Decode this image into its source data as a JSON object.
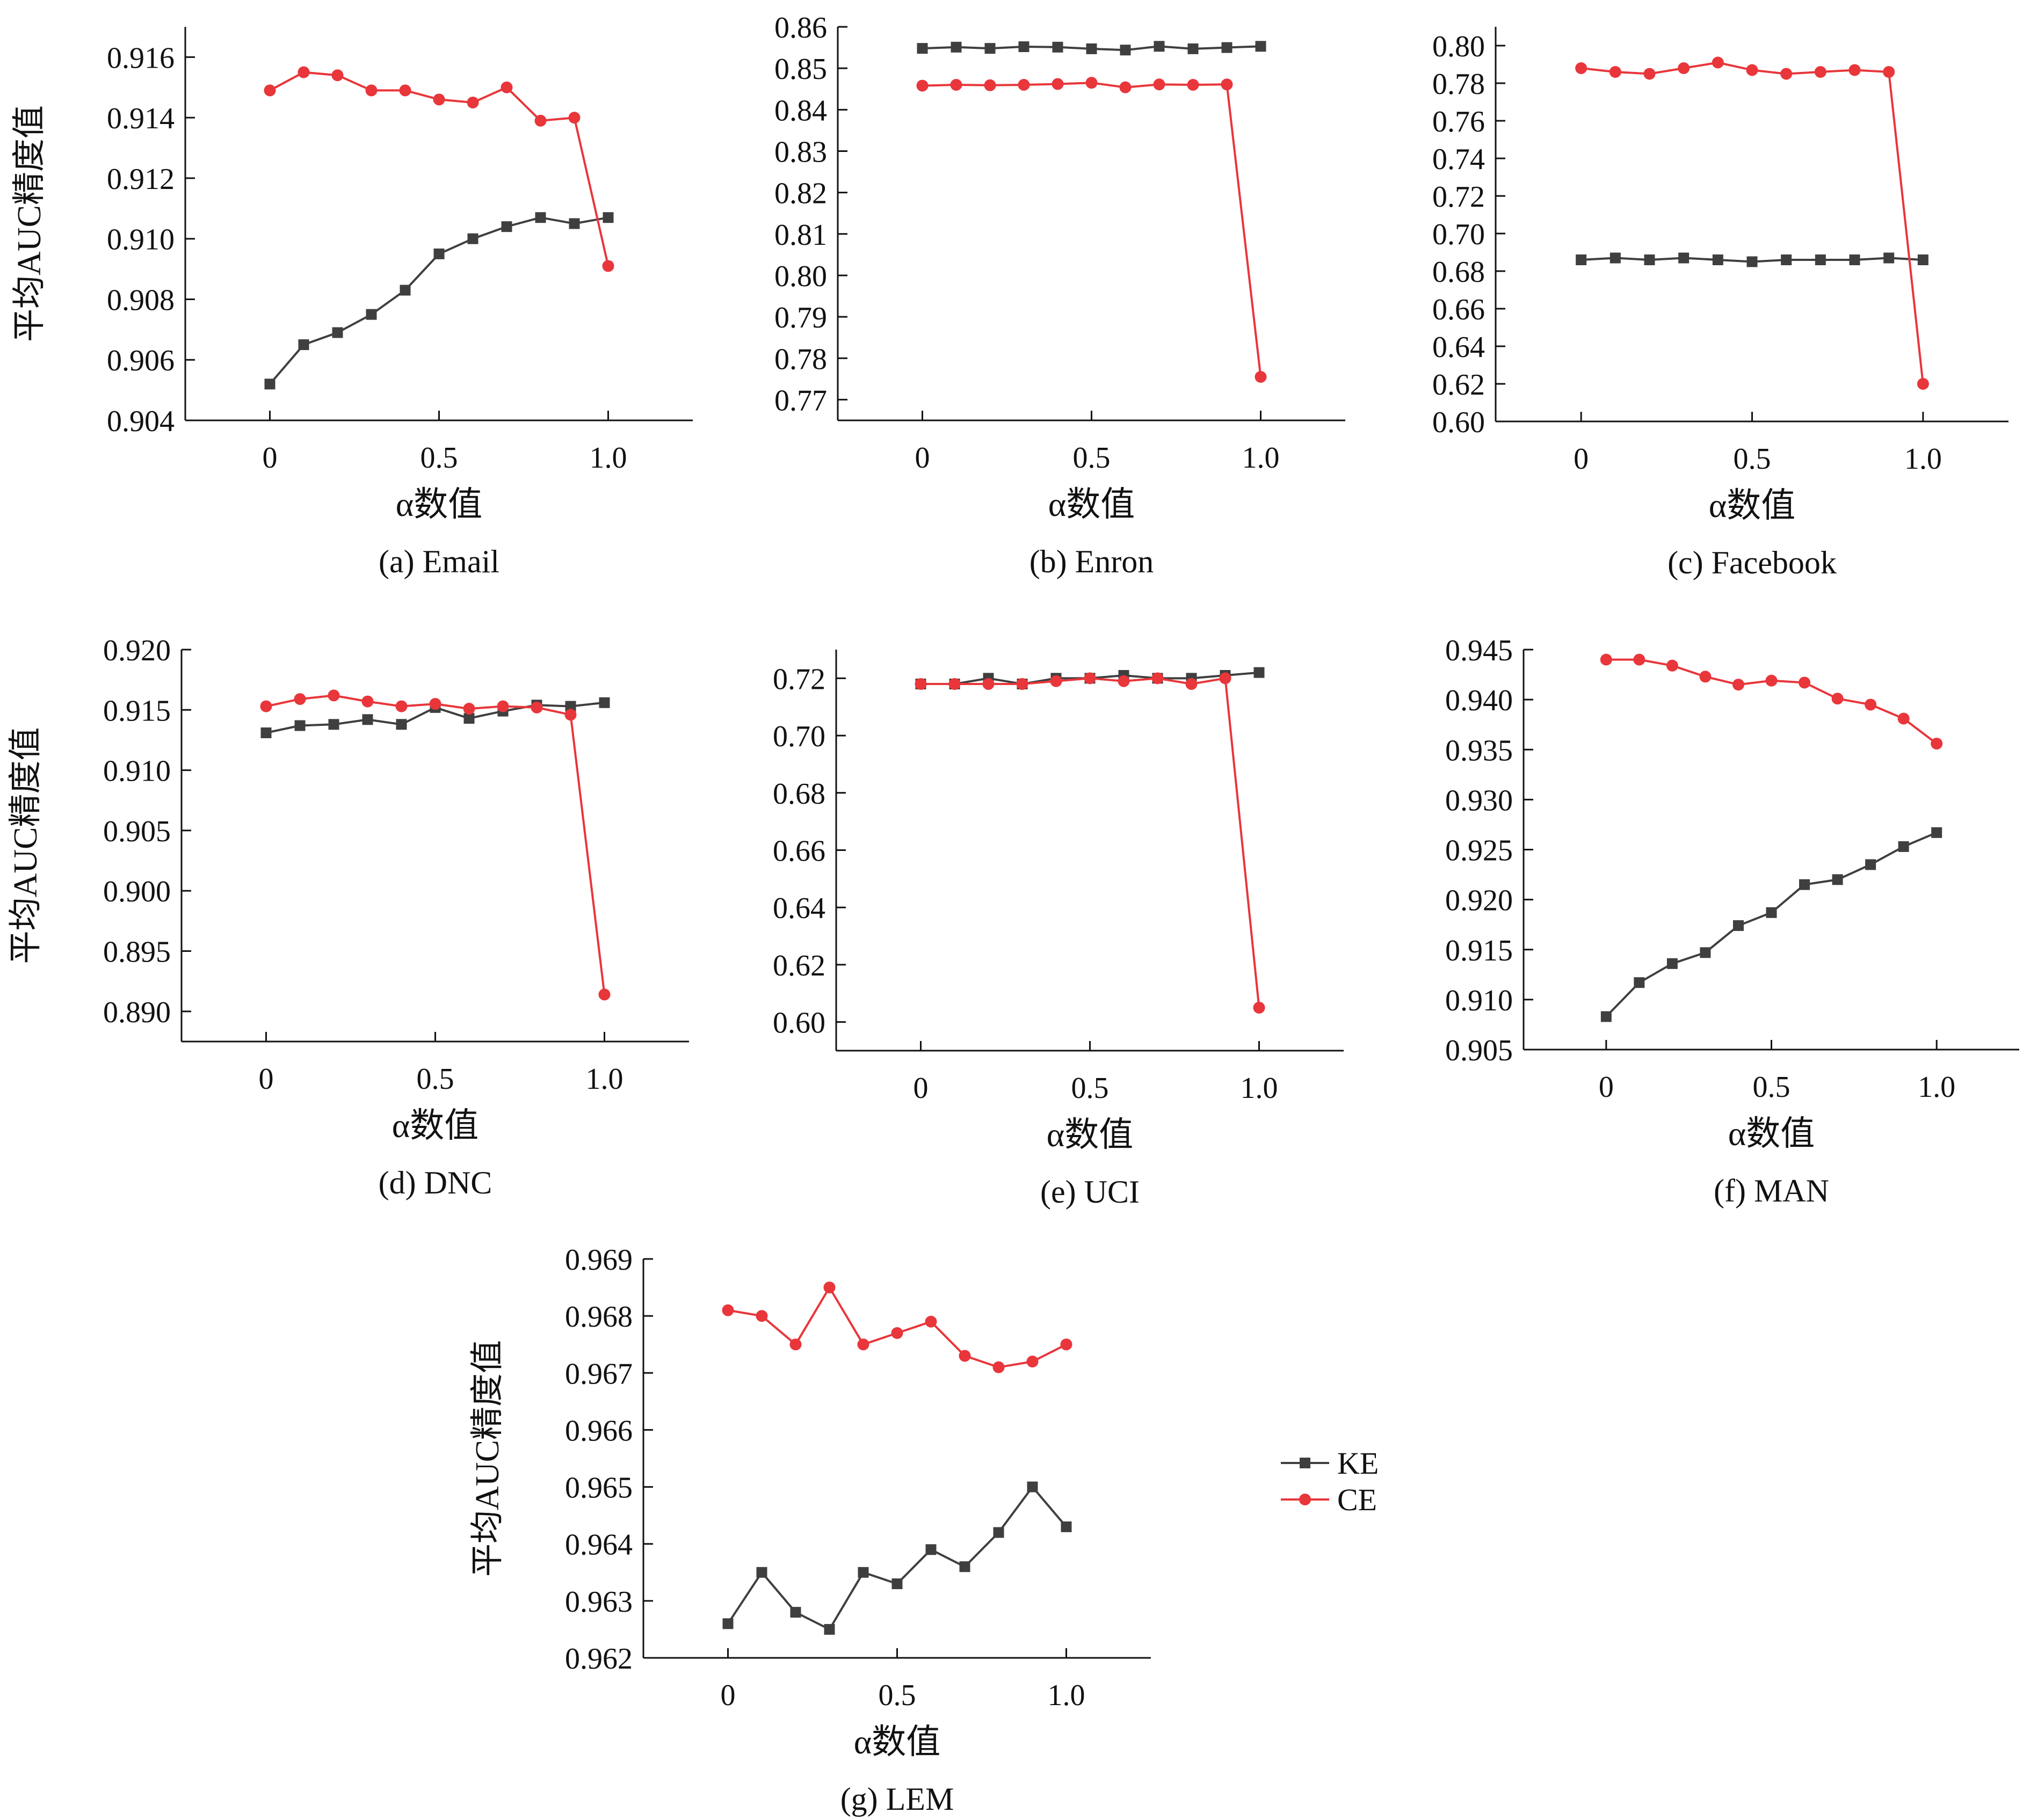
{
  "colors": {
    "KE": "#3f3f3f",
    "CE": "#e8363b",
    "axis": "#111111"
  },
  "legend": {
    "placement": "right of panel (g)",
    "items": [
      {
        "label": "KE",
        "color": "#3f3f3f",
        "marker": "square"
      },
      {
        "label": "CE",
        "color": "#e8363b",
        "marker": "circle"
      }
    ]
  },
  "chart_data": [
    {
      "type": "line",
      "caption": "(a) Email",
      "xlabel": "α数值",
      "ylabel": "平均AUC精度值",
      "x": [
        0,
        0.1,
        0.2,
        0.3,
        0.4,
        0.5,
        0.6,
        0.7,
        0.8,
        0.9,
        1.0
      ],
      "xlim": [
        -0.25,
        1.25
      ],
      "ylim": [
        0.904,
        0.917
      ],
      "xticks": [
        0,
        0.5,
        1.0
      ],
      "xticklabels": [
        "0",
        "0.5",
        "1.0"
      ],
      "yticks": [
        0.904,
        0.906,
        0.908,
        0.91,
        0.912,
        0.914,
        0.916
      ],
      "yticklabels": [
        "0.904",
        "0.906",
        "0.908",
        "0.910",
        "0.912",
        "0.914",
        "0.916"
      ],
      "series": [
        {
          "name": "KE",
          "values": [
            0.9052,
            0.9065,
            0.9069,
            0.9075,
            0.9083,
            0.9095,
            0.91,
            0.9104,
            0.9107,
            0.9105,
            0.9107
          ]
        },
        {
          "name": "CE",
          "values": [
            0.9149,
            0.9155,
            0.9154,
            0.9149,
            0.9149,
            0.9146,
            0.9145,
            0.915,
            0.9139,
            0.914,
            0.9091
          ]
        }
      ]
    },
    {
      "type": "line",
      "caption": "(b) Enron",
      "xlabel": "α数值",
      "ylabel": "",
      "x": [
        0,
        0.1,
        0.2,
        0.3,
        0.4,
        0.5,
        0.6,
        0.7,
        0.8,
        0.9,
        1.0
      ],
      "xlim": [
        -0.25,
        1.25
      ],
      "ylim": [
        0.765,
        0.86
      ],
      "xticks": [
        0,
        0.5,
        1.0
      ],
      "xticklabels": [
        "0",
        "0.5",
        "1.0"
      ],
      "yticks": [
        0.77,
        0.78,
        0.79,
        0.8,
        0.81,
        0.82,
        0.83,
        0.84,
        0.85,
        0.86
      ],
      "yticklabels": [
        "0.77",
        "0.78",
        "0.79",
        "0.80",
        "0.81",
        "0.82",
        "0.83",
        "0.84",
        "0.85",
        "0.86"
      ],
      "series": [
        {
          "name": "KE",
          "values": [
            0.8548,
            0.8551,
            0.8548,
            0.8552,
            0.8551,
            0.8547,
            0.8544,
            0.8553,
            0.8547,
            0.855,
            0.8553
          ]
        },
        {
          "name": "CE",
          "values": [
            0.8458,
            0.846,
            0.8459,
            0.846,
            0.8462,
            0.8465,
            0.8454,
            0.8461,
            0.846,
            0.8461,
            0.7755
          ]
        }
      ]
    },
    {
      "type": "line",
      "caption": "(c) Facebook",
      "xlabel": "α数值",
      "ylabel": "",
      "x": [
        0,
        0.1,
        0.2,
        0.3,
        0.4,
        0.5,
        0.6,
        0.7,
        0.8,
        0.9,
        1.0
      ],
      "xlim": [
        -0.25,
        1.25
      ],
      "ylim": [
        0.6,
        0.81
      ],
      "xticks": [
        0,
        0.5,
        1.0
      ],
      "xticklabels": [
        "0",
        "0.5",
        "1.0"
      ],
      "yticks": [
        0.6,
        0.62,
        0.64,
        0.66,
        0.68,
        0.7,
        0.72,
        0.74,
        0.76,
        0.78,
        0.8
      ],
      "yticklabels": [
        "0.60",
        "0.62",
        "0.64",
        "0.66",
        "0.68",
        "0.70",
        "0.72",
        "0.74",
        "0.76",
        "0.78",
        "0.80"
      ],
      "series": [
        {
          "name": "KE",
          "values": [
            0.686,
            0.687,
            0.686,
            0.687,
            0.686,
            0.685,
            0.686,
            0.686,
            0.686,
            0.687,
            0.686
          ]
        },
        {
          "name": "CE",
          "values": [
            0.788,
            0.786,
            0.785,
            0.788,
            0.791,
            0.787,
            0.785,
            0.786,
            0.787,
            0.786,
            0.62
          ]
        }
      ]
    },
    {
      "type": "line",
      "caption": "(d) DNC",
      "xlabel": "α数值",
      "ylabel": "平均AUC精度值",
      "x": [
        0,
        0.1,
        0.2,
        0.3,
        0.4,
        0.5,
        0.6,
        0.7,
        0.8,
        0.9,
        1.0
      ],
      "xlim": [
        -0.25,
        1.25
      ],
      "ylim": [
        0.8875,
        0.92
      ],
      "xticks": [
        0,
        0.5,
        1.0
      ],
      "xticklabels": [
        "0",
        "0.5",
        "1.0"
      ],
      "yticks": [
        0.89,
        0.895,
        0.9,
        0.905,
        0.91,
        0.915,
        0.92
      ],
      "yticklabels": [
        "0.890",
        "0.895",
        "0.900",
        "0.905",
        "0.910",
        "0.915",
        "0.920"
      ],
      "series": [
        {
          "name": "KE",
          "values": [
            0.9131,
            0.9137,
            0.9138,
            0.9142,
            0.9138,
            0.9152,
            0.9143,
            0.9149,
            0.9154,
            0.9153,
            0.9156
          ]
        },
        {
          "name": "CE",
          "values": [
            0.9153,
            0.9159,
            0.9162,
            0.9157,
            0.9153,
            0.9155,
            0.9151,
            0.9153,
            0.9152,
            0.9146,
            0.8914
          ]
        }
      ]
    },
    {
      "type": "line",
      "caption": "(e) UCI",
      "xlabel": "α数值",
      "ylabel": "",
      "x": [
        0,
        0.1,
        0.2,
        0.3,
        0.4,
        0.5,
        0.6,
        0.7,
        0.8,
        0.9,
        1.0
      ],
      "xlim": [
        -0.25,
        1.25
      ],
      "ylim": [
        0.59,
        0.73
      ],
      "xticks": [
        0,
        0.5,
        1.0
      ],
      "xticklabels": [
        "0",
        "0.5",
        "1.0"
      ],
      "yticks": [
        0.6,
        0.62,
        0.64,
        0.66,
        0.68,
        0.7,
        0.72
      ],
      "yticklabels": [
        "0.60",
        "0.62",
        "0.64",
        "0.66",
        "0.68",
        "0.70",
        "0.72"
      ],
      "series": [
        {
          "name": "KE",
          "values": [
            0.718,
            0.718,
            0.72,
            0.718,
            0.72,
            0.72,
            0.721,
            0.72,
            0.72,
            0.721,
            0.722
          ]
        },
        {
          "name": "CE",
          "values": [
            0.718,
            0.718,
            0.718,
            0.718,
            0.719,
            0.72,
            0.719,
            0.72,
            0.718,
            0.72,
            0.605
          ]
        }
      ]
    },
    {
      "type": "line",
      "caption": "(f) MAN",
      "xlabel": "α数值",
      "ylabel": "",
      "x": [
        0,
        0.1,
        0.2,
        0.3,
        0.4,
        0.5,
        0.6,
        0.7,
        0.8,
        0.9,
        1.0
      ],
      "xlim": [
        -0.25,
        1.25
      ],
      "ylim": [
        0.905,
        0.945
      ],
      "xticks": [
        0,
        0.5,
        1.0
      ],
      "xticklabels": [
        "0",
        "0.5",
        "1.0"
      ],
      "yticks": [
        0.905,
        0.91,
        0.915,
        0.92,
        0.925,
        0.93,
        0.935,
        0.94,
        0.945
      ],
      "yticklabels": [
        "0.905",
        "0.910",
        "0.915",
        "0.920",
        "0.925",
        "0.930",
        "0.935",
        "0.940",
        "0.945"
      ],
      "series": [
        {
          "name": "KE",
          "values": [
            0.9083,
            0.9117,
            0.9136,
            0.9147,
            0.9174,
            0.9187,
            0.9215,
            0.922,
            0.9235,
            0.9253,
            0.9267
          ]
        },
        {
          "name": "CE",
          "values": [
            0.944,
            0.944,
            0.9434,
            0.9423,
            0.9415,
            0.9419,
            0.9417,
            0.9401,
            0.9395,
            0.9381,
            0.9356
          ]
        }
      ]
    },
    {
      "type": "line",
      "caption": "(g) LEM",
      "xlabel": "α数值",
      "ylabel": "平均AUC精度值",
      "x": [
        0,
        0.1,
        0.2,
        0.3,
        0.4,
        0.5,
        0.6,
        0.7,
        0.8,
        0.9,
        1.0
      ],
      "xlim": [
        -0.25,
        1.25
      ],
      "ylim": [
        0.962,
        0.969
      ],
      "xticks": [
        0,
        0.5,
        1.0
      ],
      "xticklabels": [
        "0",
        "0.5",
        "1.0"
      ],
      "yticks": [
        0.962,
        0.963,
        0.964,
        0.965,
        0.966,
        0.967,
        0.968,
        0.969
      ],
      "yticklabels": [
        "0.962",
        "0.963",
        "0.964",
        "0.965",
        "0.966",
        "0.967",
        "0.968",
        "0.969"
      ],
      "series": [
        {
          "name": "KE",
          "values": [
            0.9626,
            0.9635,
            0.9628,
            0.9625,
            0.9635,
            0.9633,
            0.9639,
            0.9636,
            0.9642,
            0.965,
            0.9643
          ]
        },
        {
          "name": "CE",
          "values": [
            0.9681,
            0.968,
            0.9675,
            0.9685,
            0.9675,
            0.9677,
            0.9679,
            0.9673,
            0.9671,
            0.9672,
            0.9675
          ]
        }
      ]
    }
  ]
}
